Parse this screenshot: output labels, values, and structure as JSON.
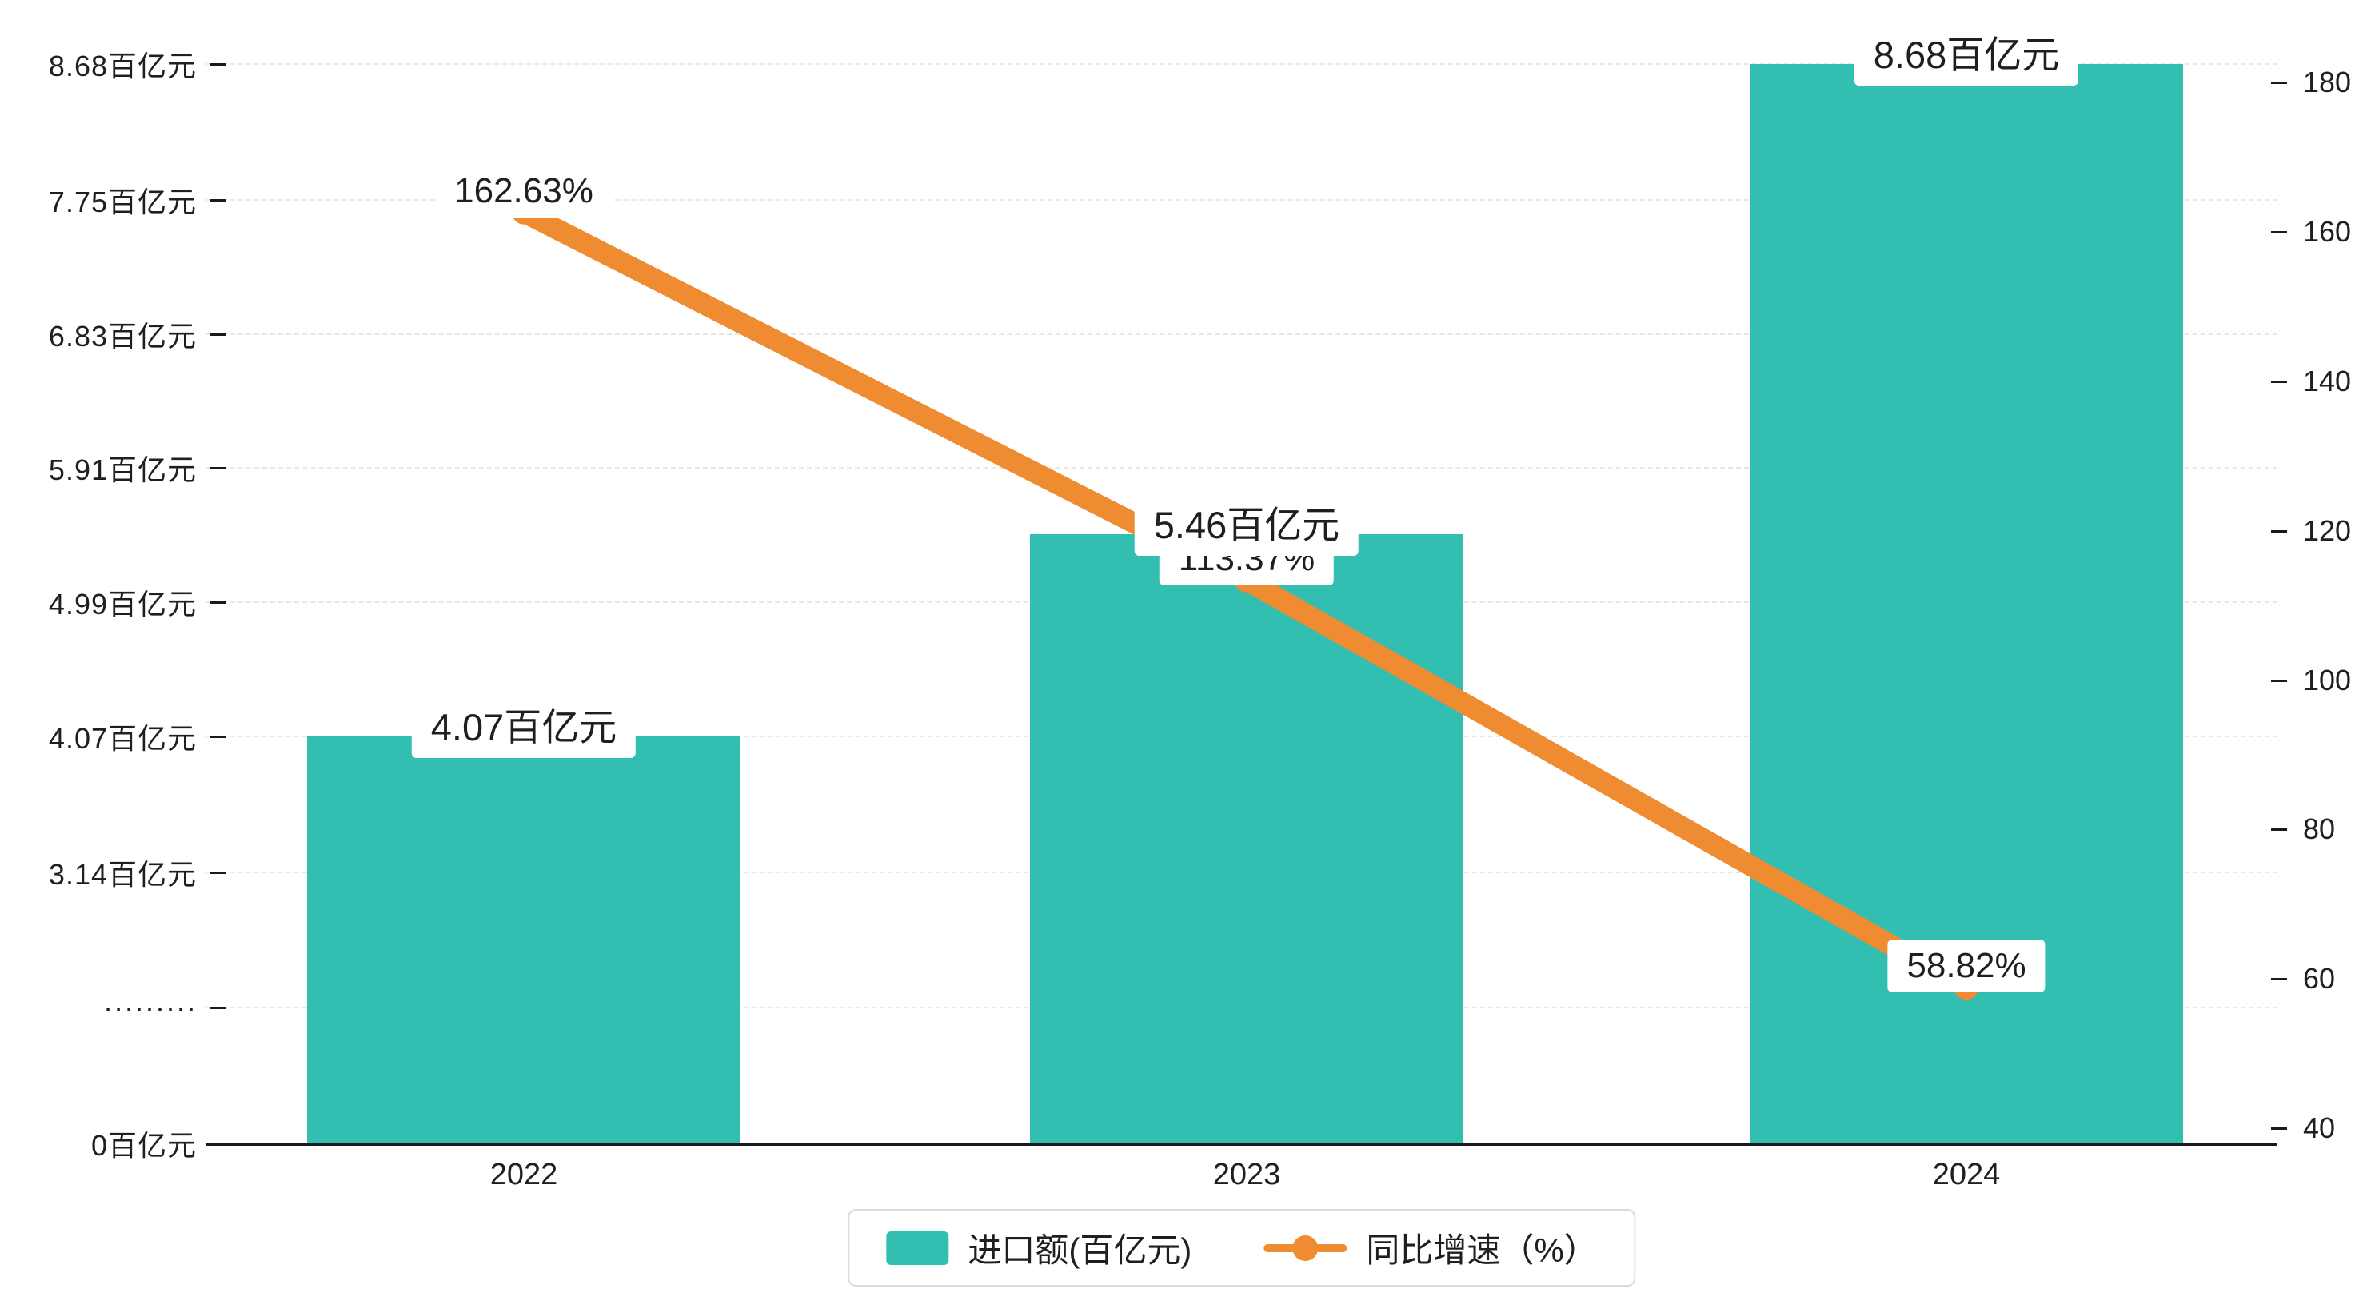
{
  "chart_data": {
    "type": "bar+line",
    "categories": [
      "2022",
      "2023",
      "2024"
    ],
    "series": [
      {
        "name": "进口额(百亿元)",
        "type": "bar",
        "axis": "left",
        "values": [
          4.07,
          5.46,
          8.68
        ],
        "labels": [
          "4.07百亿元",
          "5.46百亿元",
          "8.68百亿元"
        ],
        "color": "#32bfb1"
      },
      {
        "name": "同比增速（%）",
        "type": "line",
        "axis": "right",
        "values": [
          162.63,
          113.37,
          58.82
        ],
        "labels": [
          "162.63%",
          "113.37%",
          "58.82%"
        ],
        "color": "#ef8b30"
      }
    ],
    "left_axis": {
      "break_below": 3.14,
      "ticks": [
        {
          "label": "0百亿元",
          "value": 0
        },
        {
          "label": "·········",
          "value": null
        },
        {
          "label": "3.14百亿元",
          "value": 3.14
        },
        {
          "label": "4.07百亿元",
          "value": 4.07
        },
        {
          "label": "4.99百亿元",
          "value": 4.99
        },
        {
          "label": "5.91百亿元",
          "value": 5.91
        },
        {
          "label": "6.83百亿元",
          "value": 6.83
        },
        {
          "label": "7.75百亿元",
          "value": 7.75
        },
        {
          "label": "8.68百亿元",
          "value": 8.68
        }
      ]
    },
    "right_axis": {
      "min": 40,
      "max": 185,
      "ticks": [
        40,
        60,
        80,
        100,
        120,
        140,
        160,
        180
      ]
    },
    "legend": [
      "进口额(百亿元)",
      "同比增速（%）"
    ],
    "grid": true,
    "legend_position": "bottom-center",
    "title": ""
  },
  "colors": {
    "bar": "#32bfb1",
    "line": "#ef8b30",
    "grid": "#e9e9e4",
    "axis": "#1a1a1a",
    "background": "#ffffff",
    "label_background": "#ffffff"
  }
}
